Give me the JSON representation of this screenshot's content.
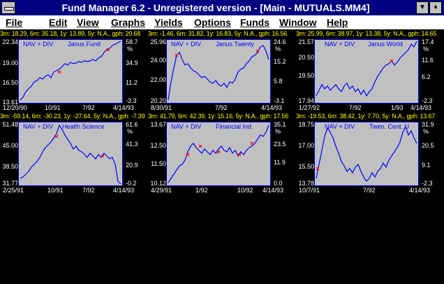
{
  "window": {
    "title": "Fund Manager 6.2 - Unregistered version - [Main - MUTUALS.MM4]",
    "minimize_glyph": "▼",
    "restore_glyph": "♦"
  },
  "menu": [
    "File",
    "Edit",
    "View",
    "Graphs",
    "Yields",
    "Options",
    "Funds",
    "Window",
    "Help"
  ],
  "legend_nav": "NAV + DIV",
  "pct_symbol": "%",
  "colors": {
    "title_bg": "#000080",
    "plot_bg": "#c0c0c0",
    "line": "#0000ff",
    "marker": "#ff0000",
    "stats": "#ffff00"
  },
  "panels": [
    {
      "stats": "3m: 18.29, 6m: 35.18, 1y: 13.89, 5y: N.A., gph: 20.68",
      "fund": "Janus Fund",
      "y_left": [
        "22.34",
        "19.00",
        "16.50",
        "13.61"
      ],
      "y_right": [
        "58.7",
        "34.9",
        "11.2",
        "-3.3"
      ],
      "x_labels": [
        "12/20/90",
        "10/91",
        "7/92",
        "4/14/93"
      ]
    },
    {
      "stats": "3m: -1.46, 6m: 31.82, 1y: 16.83, 5y: N.A., gph: 16.56",
      "fund": "Janus Twenty",
      "y_left": [
        "25.96",
        "24.00",
        "22.00",
        "20.20"
      ],
      "y_right": [
        "24.6",
        "15.2",
        "5.8",
        "-3.1"
      ],
      "x_labels": [
        "8/30/91",
        "7/92",
        "4/14/93"
      ]
    },
    {
      "stats": "3m: 25.99, 6m: 38.97, 1y: 13.38, 5y: N.A., gph: 14.65",
      "fund": "Janus World",
      "y_left": [
        "21.57",
        "20.50",
        "19.50",
        "17.94"
      ],
      "y_right": [
        "17.4",
        "11.6",
        "6.2",
        "-2.3"
      ],
      "x_labels": [
        "1/27/92",
        "7/92",
        "1/93",
        "4/14/93"
      ]
    },
    {
      "stats": "3m: -59.14, 6m: -30.23, 1y: -27.64, 5y: N.A., gph: -7.39",
      "fund": "Health Science",
      "y_left": [
        "51.48",
        "45.00",
        "38.50",
        "31.77"
      ],
      "y_right": [
        "61.6",
        "41.3",
        "20.9",
        "-0.2"
      ],
      "x_labels": [
        "2/25/91",
        "10/91",
        "7/92",
        "4/14/93"
      ]
    },
    {
      "stats": "3m: 41.79, 6m: 42.39, 1y: 15.16, 5y: N.A., gph: 17.56",
      "fund": "Financial Ind",
      "y_left": [
        "13.67",
        "12.50",
        "11.50",
        "10.12"
      ],
      "y_right": [
        "35.1",
        "23.5",
        "11.9",
        "0.0"
      ],
      "x_labels": [
        "4/29/91",
        "1/92",
        "10/92",
        "4/14/93"
      ]
    },
    {
      "stats": "3m: -19.53, 6m: 38.42, 1y: 7.70, 5y: N.A., gph: 13.67",
      "fund": "Twen. Cent. U",
      "y_left": [
        "18.75",
        "17.00",
        "15.50",
        "13.78"
      ],
      "y_right": [
        "31.9",
        "20.5",
        "9.1",
        "-2.3"
      ],
      "x_labels": [
        "10/7/91",
        "7/92",
        "4/14/93"
      ]
    }
  ]
}
